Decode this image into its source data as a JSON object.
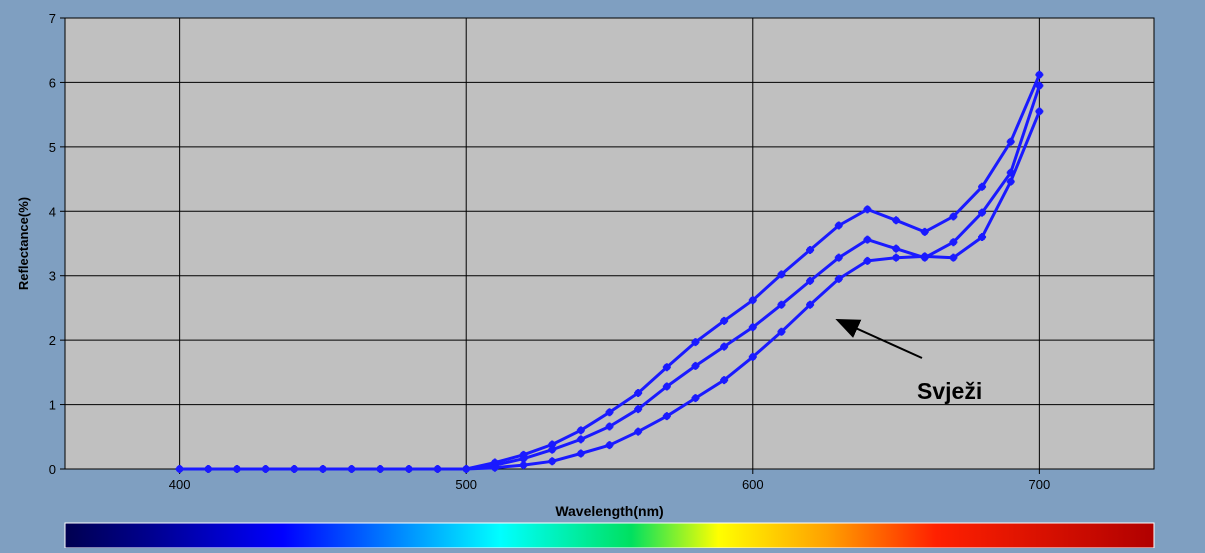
{
  "chart_data": {
    "type": "line",
    "title": "",
    "xlabel": "Wavelength(nm)",
    "ylabel": "Reflectance(%)",
    "xlim": [
      360,
      740
    ],
    "ylim": [
      0,
      7
    ],
    "x_ticks": [
      400,
      500,
      600,
      700
    ],
    "y_ticks": [
      0,
      1,
      2,
      3,
      4,
      5,
      6,
      7
    ],
    "x_tick_labels": [
      "400",
      "500",
      "600",
      "700"
    ],
    "y_tick_labels": [
      "0",
      "1",
      "2",
      "3",
      "4",
      "5",
      "6",
      "7"
    ],
    "grid": true,
    "legend": "none",
    "plot_background": "#c0c0c0",
    "frame_background": "#7f9fc1",
    "series_color": "#1a1aff",
    "annotation": {
      "text": "Svježi",
      "arrow_target": [
        628,
        2.35
      ]
    },
    "spectrum_bar": true,
    "x": [
      400,
      410,
      420,
      430,
      440,
      450,
      460,
      470,
      480,
      490,
      500,
      510,
      520,
      530,
      540,
      550,
      560,
      570,
      580,
      590,
      600,
      610,
      620,
      630,
      640,
      650,
      660,
      670,
      680,
      690,
      700
    ],
    "series": [
      {
        "values": [
          0,
          0,
          0,
          0,
          0,
          0,
          0,
          0,
          0,
          0,
          0,
          0.1,
          0.22,
          0.38,
          0.6,
          0.88,
          1.18,
          1.58,
          1.97,
          2.3,
          2.62,
          3.02,
          3.4,
          3.78,
          4.03,
          3.86,
          3.68,
          3.92,
          4.38,
          5.08,
          6.12
        ]
      },
      {
        "values": [
          0,
          0,
          0,
          0,
          0,
          0,
          0,
          0,
          0,
          0,
          0,
          0.06,
          0.16,
          0.3,
          0.46,
          0.66,
          0.93,
          1.28,
          1.6,
          1.9,
          2.2,
          2.55,
          2.92,
          3.28,
          3.56,
          3.42,
          3.28,
          3.52,
          3.98,
          4.6,
          5.95
        ]
      },
      {
        "values": [
          0,
          0,
          0,
          0,
          0,
          0,
          0,
          0,
          0,
          0,
          0,
          0.02,
          0.06,
          0.12,
          0.24,
          0.37,
          0.58,
          0.82,
          1.1,
          1.38,
          1.74,
          2.13,
          2.55,
          2.95,
          3.23,
          3.28,
          3.3,
          3.28,
          3.6,
          4.46,
          5.55
        ]
      }
    ]
  }
}
